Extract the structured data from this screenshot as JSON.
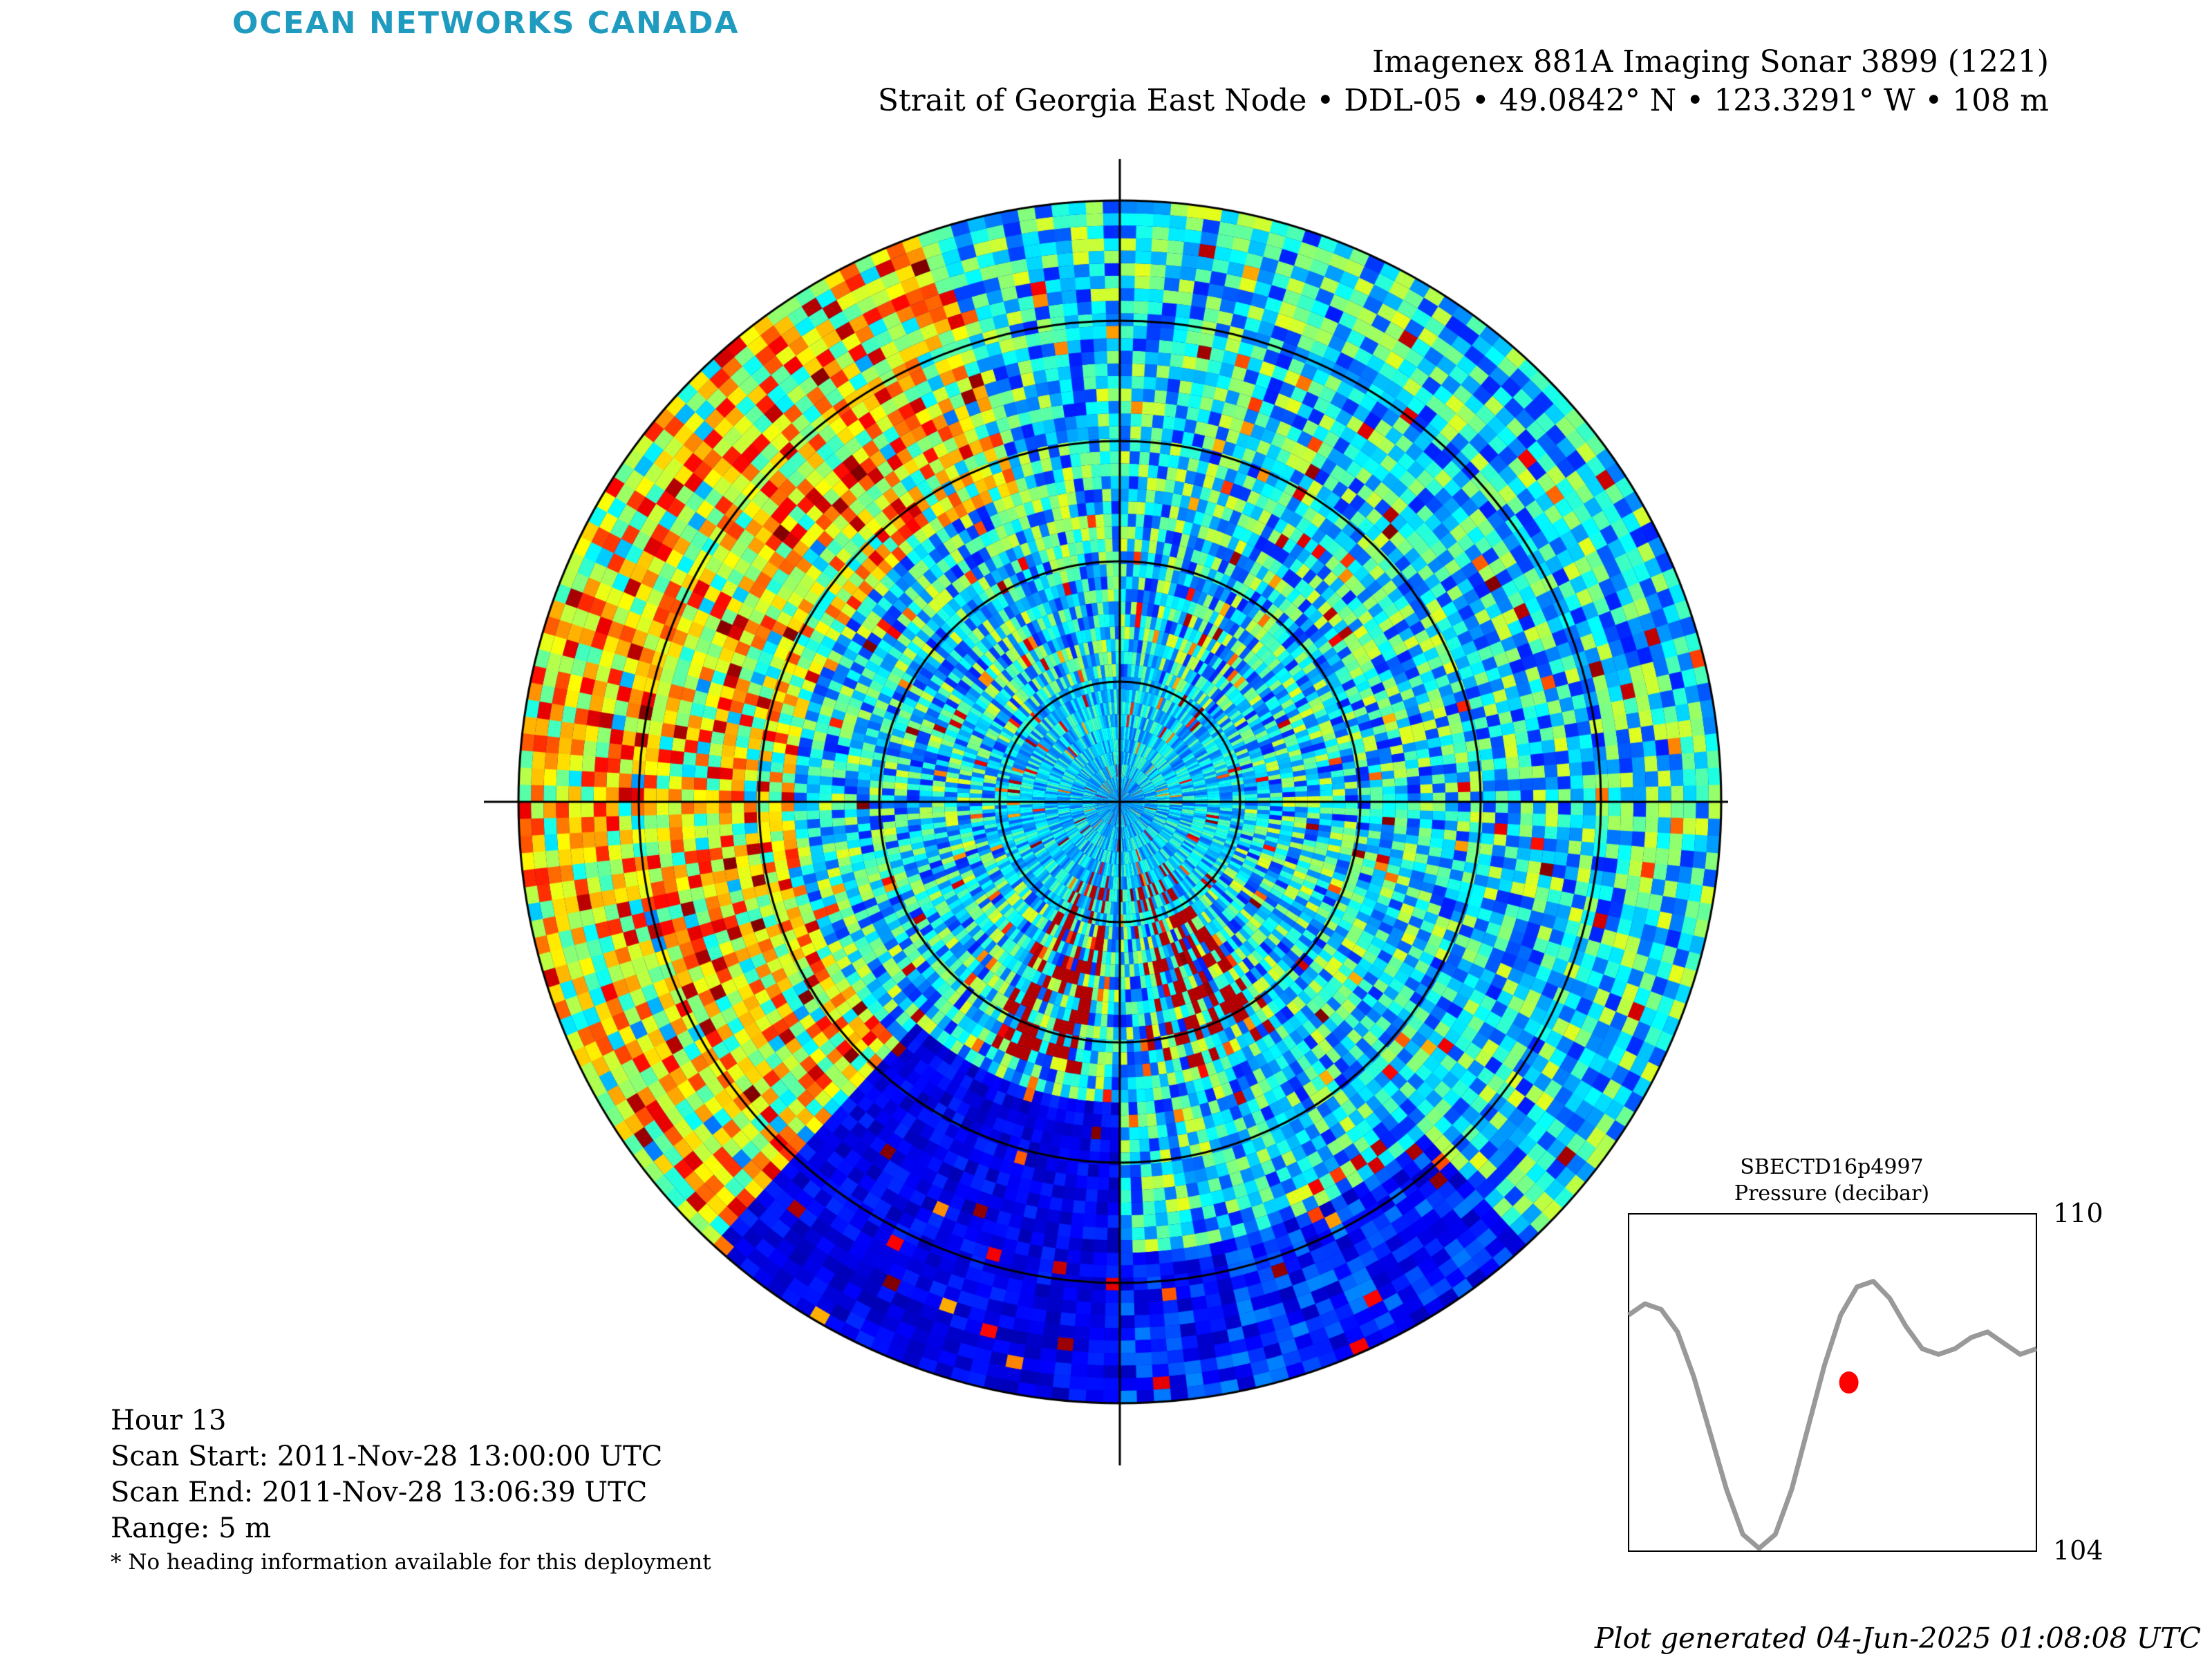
{
  "brand": {
    "logo_text": "OCEAN NETWORKS CANADA",
    "logo_color": "#1f9bbf"
  },
  "header": {
    "title": "Imagenex 881A Imaging Sonar 3899 (1221)",
    "subtitle": "Strait of Georgia East Node • DDL-05 • 49.0842° N • 123.3291° W • 108 m"
  },
  "scan_info": {
    "hour": "Hour 13",
    "scan_start": "Scan Start: 2011-Nov-28 13:00:00 UTC",
    "scan_end": "Scan End: 2011-Nov-28 13:06:39 UTC",
    "range": "Range: 5 m",
    "note": "* No heading information available for this deployment"
  },
  "footer": {
    "generated": "Plot generated 04-Jun-2025 01:08:08 UTC"
  },
  "chart_data": [
    {
      "type": "heatmap",
      "projection": "polar",
      "colormap": "jet",
      "range_m": 5,
      "range_rings_m": [
        1,
        2,
        3,
        4,
        5
      ],
      "crosshair": true,
      "description_levels": "dark blue (low) to dark red (high) backscatter intensity"
    },
    {
      "type": "line",
      "title": "SBECTD16p4997",
      "subtitle": "Pressure (decibar)",
      "ylim": [
        104,
        110
      ],
      "ytick_labels": [
        "110",
        "104"
      ],
      "x": [
        0,
        0.04,
        0.08,
        0.12,
        0.16,
        0.2,
        0.24,
        0.28,
        0.32,
        0.36,
        0.4,
        0.44,
        0.48,
        0.52,
        0.56,
        0.6,
        0.64,
        0.68,
        0.72,
        0.76,
        0.8,
        0.84,
        0.88,
        0.92,
        0.96,
        1.0
      ],
      "y": [
        108.2,
        108.4,
        108.3,
        107.9,
        107.1,
        106.1,
        105.1,
        104.3,
        104.05,
        104.3,
        105.1,
        106.2,
        107.3,
        108.2,
        108.7,
        108.8,
        108.5,
        108.0,
        107.6,
        107.5,
        107.6,
        107.8,
        107.9,
        107.7,
        107.5,
        107.6
      ],
      "line_color": "#999999",
      "marker": {
        "x": 0.54,
        "y": 107.0,
        "color": "#ff0000"
      }
    }
  ]
}
